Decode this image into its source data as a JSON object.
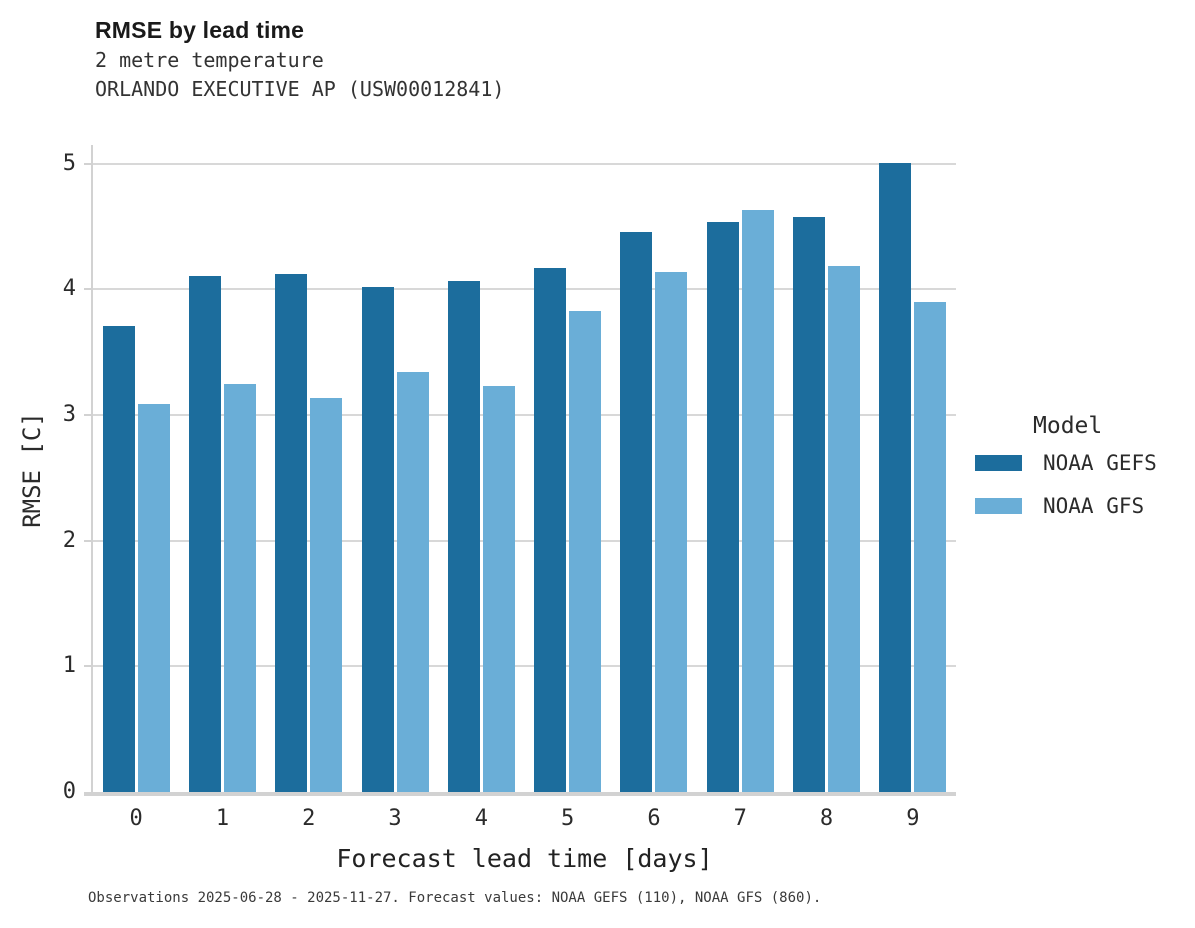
{
  "chart_data": {
    "type": "bar",
    "title": "RMSE by lead time",
    "subtitle": [
      "2 metre temperature",
      "ORLANDO EXECUTIVE AP (USW00012841)"
    ],
    "categories": [
      "0",
      "1",
      "2",
      "3",
      "4",
      "5",
      "6",
      "7",
      "8",
      "9"
    ],
    "series": [
      {
        "name": "NOAA GEFS",
        "color": "#1c6d9d",
        "values": [
          3.71,
          4.11,
          4.12,
          4.02,
          4.07,
          4.17,
          4.46,
          4.54,
          4.58,
          5.01
        ]
      },
      {
        "name": "NOAA GFS",
        "color": "#6aaed7",
        "values": [
          3.09,
          3.25,
          3.14,
          3.34,
          3.23,
          3.83,
          4.14,
          4.63,
          4.19,
          3.9
        ]
      }
    ],
    "xlabel": "Forecast lead time [days]",
    "ylabel": "RMSE [C]",
    "ylim": [
      0,
      5.15
    ],
    "yticks": [
      0,
      1,
      2,
      3,
      4,
      5
    ],
    "grid": true,
    "legend": {
      "title": "Model",
      "position": "right"
    }
  },
  "footer": {
    "note": "Observations 2025-06-28 - 2025-11-27. Forecast values: NOAA GEFS (110), NOAA GFS (860)."
  },
  "colors": {
    "gefs": "#1c6d9d",
    "gfs": "#6aaed7",
    "gridline": "#d8d8d8",
    "axis_domain": "#d2d2d2"
  }
}
